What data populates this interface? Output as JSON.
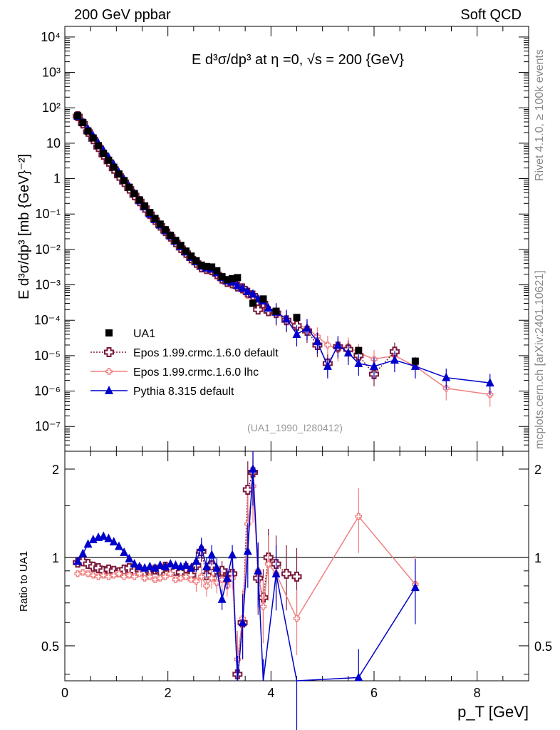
{
  "header": {
    "left": "200 GeV ppbar",
    "right": "Soft QCD"
  },
  "side_labels": {
    "rivet": "Rivet 4.1.0, ≥ 100k events",
    "mcplots": "mcplots.cern.ch [arXiv:2401.10621]"
  },
  "chart_data": [
    {
      "panel": "main",
      "type": "scatter",
      "title": "E  d³σ/dp³ at η =0, √s = 200 {GeV}",
      "ylabel": "E d³σ/dp³ [mb {GeV}⁻²]",
      "xlabel": "p_T [GeV]",
      "xlim": [
        0,
        9
      ],
      "ylim_log10": [
        -7.7,
        4.3
      ],
      "y_scale": "log",
      "x_ticks": [
        "0",
        "2",
        "4",
        "6",
        "8"
      ],
      "y_tick_labels": [
        "10⁴",
        "10³",
        "10²",
        "10",
        "1",
        "10⁻¹",
        "10⁻²",
        "10⁻³",
        "10⁻⁴",
        "10⁻⁵",
        "10⁻⁶",
        "10⁻⁷"
      ],
      "watermark": "(UA1_1990_I280412)",
      "legend": [
        {
          "label": "UA1",
          "color": "#000000",
          "marker": "square",
          "line": "none"
        },
        {
          "label": "Epos 1.99.crmc.1.6.0 default",
          "color": "#7b1a3c",
          "marker": "open-cross",
          "line": "dotted"
        },
        {
          "label": "Epos 1.99.crmc.1.6.0 lhc",
          "color": "#f08080",
          "marker": "small-cross",
          "line": "solid"
        },
        {
          "label": "Pythia 8.315 default",
          "color": "#0000cc",
          "marker": "triangle",
          "line": "solid"
        }
      ],
      "series": [
        {
          "name": "UA1",
          "x": [
            0.25,
            0.35,
            0.45,
            0.55,
            0.65,
            0.75,
            0.85,
            0.95,
            1.05,
            1.15,
            1.25,
            1.35,
            1.45,
            1.55,
            1.65,
            1.75,
            1.85,
            1.95,
            2.05,
            2.15,
            2.25,
            2.35,
            2.45,
            2.55,
            2.65,
            2.75,
            2.85,
            2.95,
            3.05,
            3.15,
            3.25,
            3.35,
            3.65,
            3.85,
            4.1,
            4.5,
            5.7,
            6.8
          ],
          "y": [
            60,
            38,
            22,
            14,
            8.5,
            5.2,
            3.3,
            2.1,
            1.35,
            0.88,
            0.57,
            0.38,
            0.25,
            0.17,
            0.11,
            0.075,
            0.052,
            0.036,
            0.025,
            0.018,
            0.013,
            0.009,
            0.0065,
            0.0048,
            0.0036,
            0.0033,
            0.0032,
            0.0025,
            0.0017,
            0.0014,
            0.0015,
            0.0016,
            0.0003,
            0.0004,
            0.00018,
            0.00012,
            1.4e-05,
            7e-06
          ]
        },
        {
          "name": "Epos 1.99.crmc.1.6.0 default",
          "x": [
            0.25,
            0.35,
            0.45,
            0.55,
            0.65,
            0.75,
            0.85,
            0.95,
            1.05,
            1.15,
            1.25,
            1.35,
            1.45,
            1.55,
            1.65,
            1.75,
            1.85,
            1.95,
            2.05,
            2.15,
            2.25,
            2.35,
            2.45,
            2.55,
            2.65,
            2.75,
            2.85,
            2.95,
            3.05,
            3.15,
            3.25,
            3.35,
            3.45,
            3.55,
            3.65,
            3.75,
            3.85,
            3.95,
            4.1,
            4.3,
            4.5,
            4.7,
            4.9,
            5.1,
            5.3,
            5.5,
            5.7,
            6.0,
            6.4
          ],
          "y": [
            58,
            36,
            21,
            13,
            7.8,
            4.7,
            3.0,
            1.9,
            1.2,
            0.8,
            0.52,
            0.34,
            0.23,
            0.15,
            0.1,
            0.068,
            0.047,
            0.033,
            0.023,
            0.016,
            0.011,
            0.008,
            0.0056,
            0.0042,
            0.0031,
            0.0028,
            0.0026,
            0.002,
            0.0015,
            0.0012,
            0.0011,
            0.0009,
            0.0008,
            0.0006,
            0.0005,
            0.0002,
            0.0003,
            0.00018,
            0.00016,
            0.0001,
            7e-05,
            5e-05,
            2e-05,
            6e-06,
            1.8e-05,
            1.5e-05,
            1e-05,
            3e-06,
            1.3e-05
          ]
        },
        {
          "name": "Epos 1.99.crmc.1.6.0 lhc",
          "x": [
            0.25,
            0.35,
            0.45,
            0.55,
            0.65,
            0.75,
            0.85,
            0.95,
            1.05,
            1.15,
            1.25,
            1.35,
            1.45,
            1.55,
            1.65,
            1.75,
            1.85,
            1.95,
            2.05,
            2.15,
            2.25,
            2.35,
            2.45,
            2.55,
            2.65,
            2.75,
            2.85,
            2.95,
            3.05,
            3.15,
            3.25,
            3.35,
            3.45,
            3.55,
            3.65,
            3.75,
            3.85,
            3.95,
            4.1,
            4.3,
            4.5,
            4.7,
            4.9,
            5.1,
            5.3,
            5.5,
            5.7,
            6.0,
            6.4,
            6.8,
            7.4,
            8.25
          ],
          "y": [
            53,
            33,
            19,
            12,
            7.2,
            4.4,
            2.8,
            1.8,
            1.15,
            0.75,
            0.49,
            0.32,
            0.22,
            0.14,
            0.095,
            0.064,
            0.044,
            0.031,
            0.022,
            0.015,
            0.011,
            0.0075,
            0.0053,
            0.004,
            0.003,
            0.0026,
            0.0025,
            0.0019,
            0.0014,
            0.0011,
            0.001,
            0.00085,
            0.0007,
            0.0005,
            0.00045,
            0.0003,
            0.00025,
            0.00017,
            0.00015,
            0.0001,
            7.5e-05,
            6e-05,
            3.5e-05,
            2e-05,
            1.5e-05,
            1.8e-05,
            1.2e-05,
            8e-06,
            1e-05,
            5e-06,
            1.2e-06,
            8e-07
          ]
        },
        {
          "name": "Pythia 8.315 default",
          "x": [
            0.25,
            0.35,
            0.45,
            0.55,
            0.65,
            0.75,
            0.85,
            0.95,
            1.05,
            1.15,
            1.25,
            1.35,
            1.45,
            1.55,
            1.65,
            1.75,
            1.85,
            1.95,
            2.05,
            2.15,
            2.25,
            2.35,
            2.45,
            2.55,
            2.65,
            2.75,
            2.85,
            2.95,
            3.05,
            3.15,
            3.25,
            3.35,
            3.45,
            3.55,
            3.65,
            3.75,
            3.85,
            3.95,
            4.1,
            4.3,
            4.5,
            4.7,
            4.9,
            5.1,
            5.3,
            5.5,
            5.7,
            6.0,
            6.4,
            6.8,
            7.4,
            8.25
          ],
          "y": [
            58,
            39,
            25,
            16,
            10,
            6.3,
            4.0,
            2.5,
            1.5,
            0.95,
            0.6,
            0.38,
            0.24,
            0.16,
            0.1,
            0.07,
            0.049,
            0.034,
            0.024,
            0.017,
            0.012,
            0.0085,
            0.006,
            0.0045,
            0.0034,
            0.003,
            0.0028,
            0.0022,
            0.0016,
            0.0013,
            0.0012,
            0.00095,
            0.0008,
            0.00065,
            0.00055,
            0.0004,
            0.00035,
            0.00022,
            0.00017,
            0.00011,
            4e-05,
            6e-05,
            2.5e-05,
            5e-06,
            2e-05,
            1.2e-05,
            6e-06,
            5e-06,
            7.5e-06,
            5e-06,
            2.4e-06,
            1.7e-06
          ]
        }
      ]
    },
    {
      "panel": "ratio",
      "type": "line",
      "ylabel": "Ratio to UA1",
      "xlabel": "p_T [GeV]",
      "xlim": [
        0,
        9
      ],
      "ylim": [
        0.38,
        2.3
      ],
      "y_scale": "log",
      "y_ticks": [
        0.5,
        1,
        2
      ],
      "y_tick_labels": [
        "0.5",
        "1",
        "2"
      ],
      "reference_line": 1,
      "series": [
        {
          "name": "Epos 1.99.crmc.1.6.0 default",
          "x": [
            0.25,
            0.35,
            0.45,
            0.55,
            0.65,
            0.75,
            0.85,
            0.95,
            1.05,
            1.15,
            1.25,
            1.35,
            1.45,
            1.55,
            1.65,
            1.75,
            1.85,
            1.95,
            2.05,
            2.15,
            2.25,
            2.35,
            2.45,
            2.55,
            2.65,
            2.75,
            2.85,
            2.95,
            3.05,
            3.15,
            3.25,
            3.35,
            3.45,
            3.55,
            3.65,
            3.75,
            3.85,
            3.95,
            4.1,
            4.3,
            4.5
          ],
          "y": [
            0.96,
            0.97,
            0.95,
            0.93,
            0.92,
            0.9,
            0.91,
            0.9,
            0.89,
            0.91,
            0.92,
            0.9,
            0.91,
            0.89,
            0.9,
            0.91,
            0.9,
            0.93,
            0.92,
            0.9,
            0.89,
            0.92,
            0.87,
            0.94,
            1.05,
            0.87,
            0.94,
            0.85,
            0.9,
            0.85,
            0.88,
            0.4,
            0.6,
            1.7,
            1.95,
            0.85,
            0.73,
            1.0,
            0.95,
            0.88,
            0.86
          ]
        },
        {
          "name": "Epos 1.99.crmc.1.6.0 lhc",
          "x": [
            0.25,
            0.35,
            0.45,
            0.55,
            0.65,
            0.75,
            0.85,
            0.95,
            1.05,
            1.15,
            1.25,
            1.35,
            1.45,
            1.55,
            1.65,
            1.75,
            1.85,
            1.95,
            2.05,
            2.15,
            2.25,
            2.35,
            2.45,
            2.55,
            2.65,
            2.75,
            2.85,
            2.95,
            3.05,
            3.15,
            3.25,
            3.35,
            3.45,
            3.55,
            3.65,
            3.75,
            3.85,
            3.95,
            4.1,
            4.5,
            5.7,
            6.8
          ],
          "y": [
            0.88,
            0.89,
            0.88,
            0.87,
            0.86,
            0.87,
            0.86,
            0.87,
            0.88,
            0.86,
            0.87,
            0.86,
            0.88,
            0.85,
            0.86,
            0.84,
            0.85,
            0.86,
            0.88,
            0.84,
            0.85,
            0.86,
            0.84,
            0.83,
            0.86,
            0.8,
            0.85,
            0.82,
            0.84,
            0.8,
            0.85,
            0.45,
            0.62,
            1.3,
            1.75,
            0.9,
            0.68,
            0.95,
            0.88,
            0.62,
            1.38,
            0.81
          ]
        },
        {
          "name": "Pythia 8.315 default",
          "x": [
            0.25,
            0.35,
            0.45,
            0.55,
            0.65,
            0.75,
            0.85,
            0.95,
            1.05,
            1.15,
            1.25,
            1.35,
            1.45,
            1.55,
            1.65,
            1.75,
            1.85,
            1.95,
            2.05,
            2.15,
            2.25,
            2.35,
            2.45,
            2.55,
            2.65,
            2.75,
            2.85,
            2.95,
            3.05,
            3.15,
            3.25,
            3.35,
            3.45,
            3.55,
            3.65,
            3.75,
            3.85,
            4.1,
            4.5,
            5.7,
            6.8
          ],
          "y": [
            0.97,
            1.03,
            1.11,
            1.15,
            1.17,
            1.18,
            1.16,
            1.13,
            1.09,
            1.04,
            0.99,
            0.95,
            0.93,
            0.92,
            0.93,
            0.92,
            0.94,
            0.93,
            0.95,
            0.94,
            0.93,
            0.94,
            0.92,
            0.97,
            1.08,
            0.93,
            1.02,
            0.92,
            0.72,
            0.85,
            1.02,
            0.37,
            0.6,
            1.05,
            2.0,
            0.9,
            0.36,
            0.88,
            0.2,
            0.39,
            0.79
          ]
        }
      ]
    }
  ]
}
